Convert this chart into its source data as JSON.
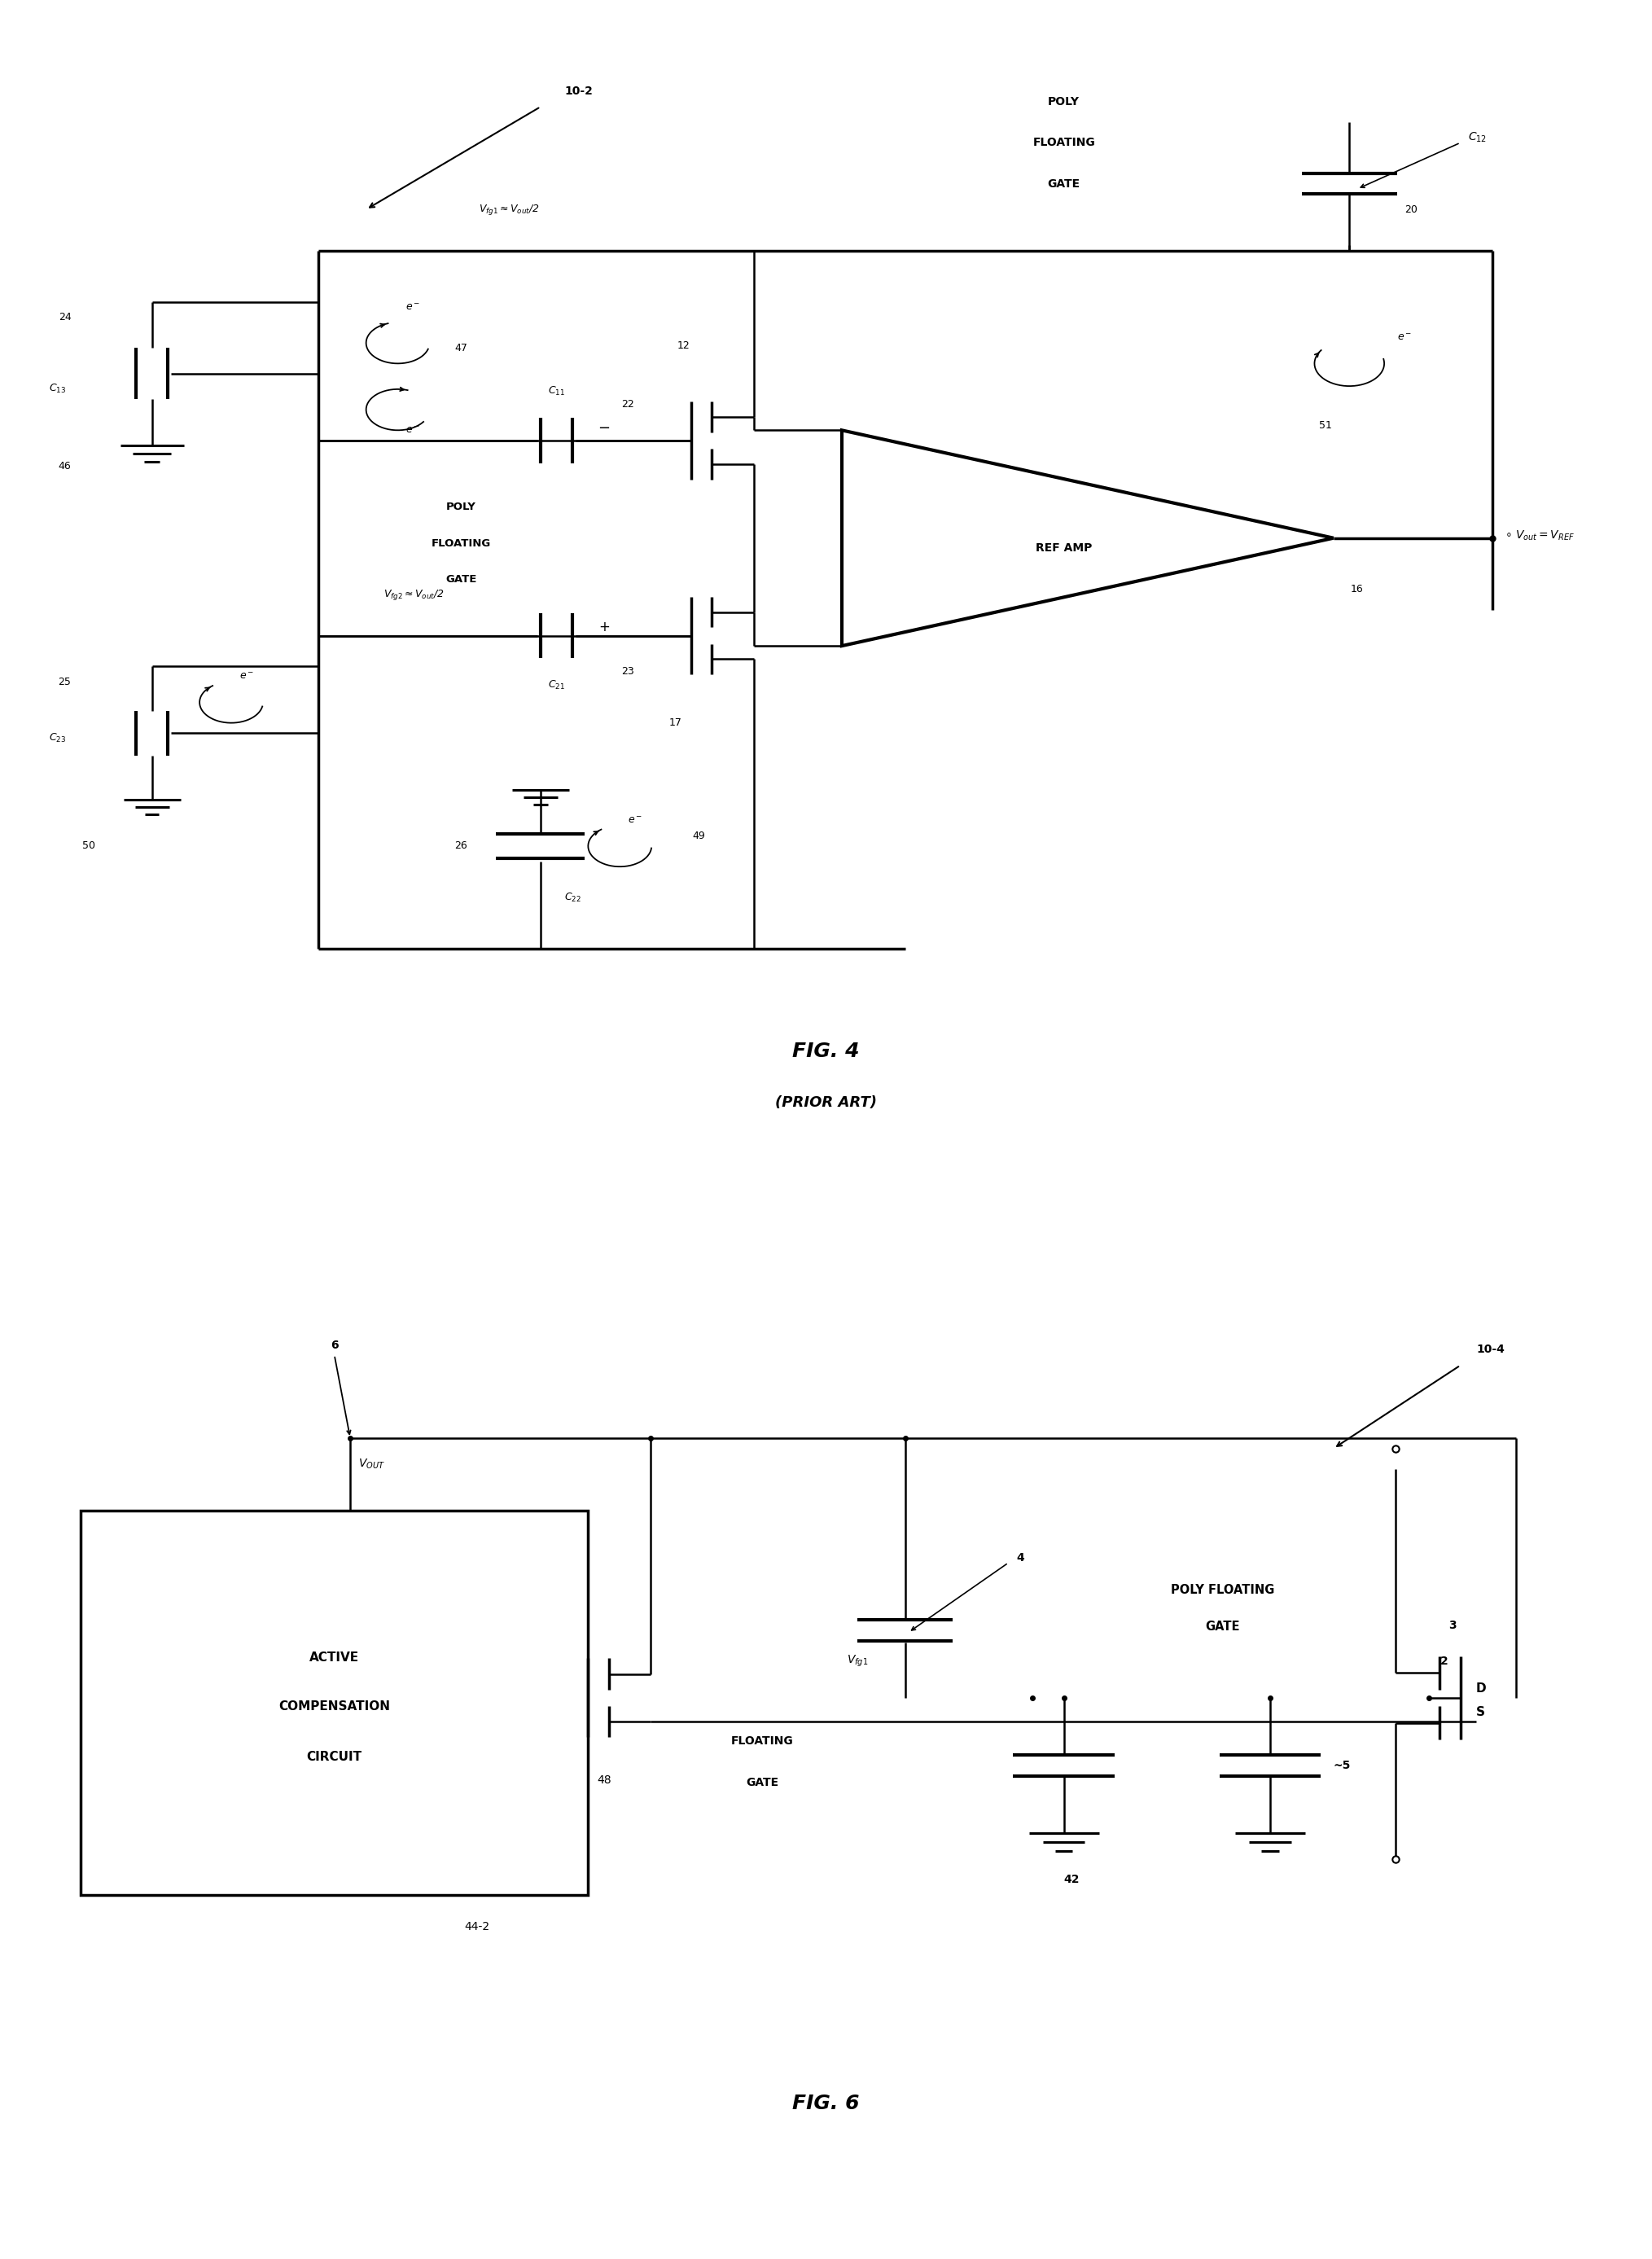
{
  "bg": "#ffffff",
  "lw": 1.8,
  "tlw": 2.5,
  "fig4": {
    "title": "FIG. 4",
    "subtitle": "(PRIOR ART)",
    "ref_label": "10-2",
    "poly_label": [
      "POLY",
      "FLOATING",
      "GATE"
    ],
    "poly_label2": [
      "POLY",
      "FLOATING",
      "GATE"
    ],
    "vfg1": "Vₑg₁≈Vₒₑₜ/2",
    "vfg2": "Vₑg₂≈Vₒₑₜ/2",
    "ref_amp": "REF AMP",
    "vout_label": "Vₒₑₜ=Vᴿᴱᶠ",
    "c12": "C₁₂",
    "c13": "C₁₃",
    "c11": "C₁₁",
    "c21": "C₂₁",
    "c22": "C₂₂",
    "c23": "C₂₃",
    "nums": {
      "10-2": 1,
      "12": 1,
      "16": 1,
      "17": 1,
      "20": 1,
      "22": 1,
      "23": 1,
      "24": 1,
      "25": 1,
      "26": 1,
      "46": 1,
      "47": 1,
      "49": 1,
      "50": 1,
      "51": 1,
      "11": 1
    }
  },
  "fig6": {
    "title": "FIG. 6",
    "ref_label": "10-4",
    "box_text": [
      "ACTIVE",
      "COMPENSATION",
      "CIRCUIT"
    ],
    "box_label": "44-2",
    "vout": "Vₒᵁᵀ",
    "vfg1": "Vₑg₁",
    "floating_gate": [
      "FLOATING",
      "GATE"
    ],
    "poly_floating_gate": [
      "POLY FLOATING",
      "GATE"
    ],
    "nums": {
      "6": 1,
      "48": 1,
      "4": 1,
      "42": 1,
      "5": 1,
      "2": 1,
      "3": 1,
      "44-2": 1,
      "10-4": 1
    }
  }
}
